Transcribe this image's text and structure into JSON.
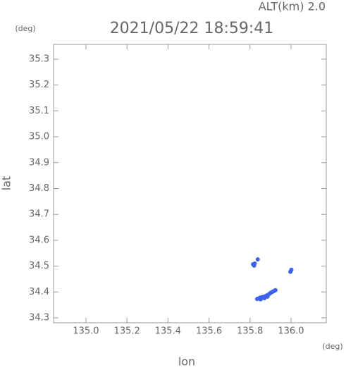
{
  "chart_data": {
    "type": "scatter",
    "title": "2021/05/22 18:59:41",
    "subtitle": "ALT(km) 2.0",
    "y_unit": "(deg)",
    "x_unit": "(deg)",
    "xlabel": "lon",
    "ylabel": "lat",
    "xlim": [
      134.842,
      136.172
    ],
    "ylim": [
      34.281,
      35.357
    ],
    "xticks": [
      {
        "value": 135.0,
        "label": "135.0"
      },
      135.2,
      135.4,
      135.6,
      135.8,
      {
        "value": 136.0,
        "label": "136.0"
      }
    ],
    "yticks": [
      34.3,
      34.4,
      34.5,
      34.6,
      34.7,
      34.8,
      34.9,
      {
        "value": 35.0,
        "label": "35.0"
      },
      35.1,
      35.2,
      35.3
    ],
    "series": [
      {
        "color": "#3d62ea",
        "x": [
          135.815,
          135.82,
          135.823,
          135.838,
          135.997,
          136.002,
          135.835,
          135.842,
          135.85,
          135.858,
          135.866,
          135.873,
          135.88,
          135.888,
          135.895,
          135.902,
          135.91,
          135.917,
          135.924,
          135.852,
          135.87,
          135.885
        ],
        "values": [
          34.507,
          34.502,
          34.51,
          34.526,
          34.478,
          34.486,
          34.373,
          34.375,
          34.378,
          34.38,
          34.381,
          34.383,
          34.386,
          34.389,
          34.393,
          34.397,
          34.401,
          34.404,
          34.407,
          34.372,
          34.376,
          34.382
        ]
      }
    ]
  }
}
